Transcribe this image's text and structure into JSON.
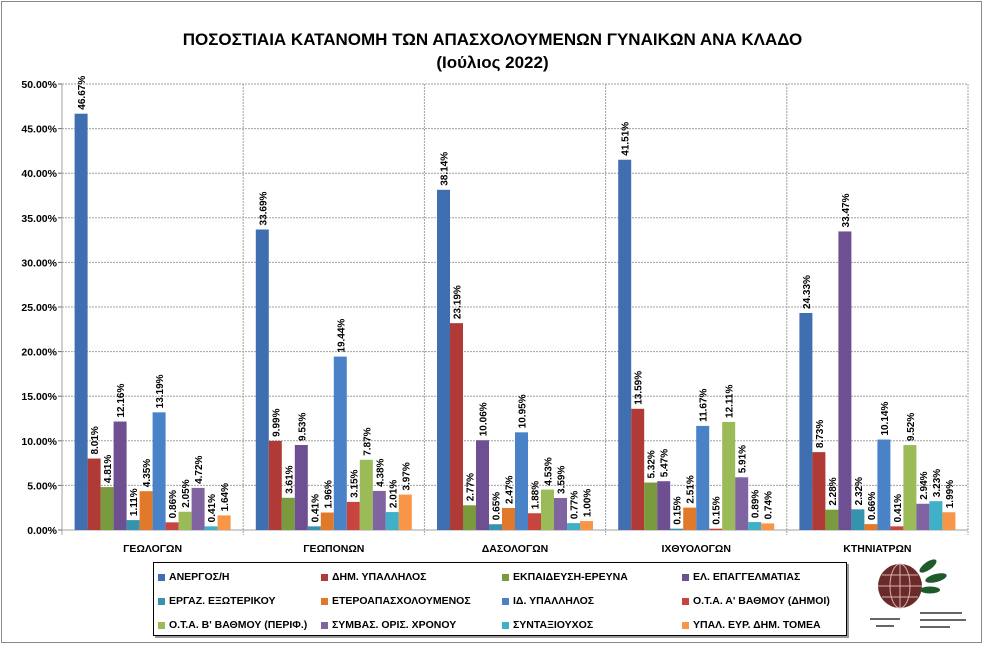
{
  "chart_data": {
    "type": "bar",
    "title": "ΠΟΣΟΣΤΙΑΙΑ ΚΑΤΑΝΟΜΗ ΤΩΝ ΑΠΑΣΧΟΛΟΥΜΕΝΩΝ ΓΥΝΑΙΚΩΝ ΑΝΑ ΚΛΑΔΟ",
    "subtitle": "(Ιούλιος 2022)",
    "categories": [
      "ΓΕΩΛΟΓΩΝ",
      "ΓΕΩΠΟΝΩΝ",
      "ΔΑΣΟΛΟΓΩΝ",
      "ΙΧΘΥΟΛΟΓΩΝ",
      "ΚΤΗΝΙΑΤΡΩΝ"
    ],
    "ylim": [
      0,
      50
    ],
    "yticks": [
      "0.00%",
      "5.00%",
      "10.00%",
      "15.00%",
      "20.00%",
      "25.00%",
      "30.00%",
      "35.00%",
      "40.00%",
      "45.00%",
      "50.00%"
    ],
    "grid": true,
    "legend_position": "bottom",
    "series": [
      {
        "name": "ΑΝΕΡΓΟΣ/Η",
        "color": "#3f6fb0",
        "values": [
          46.67,
          33.69,
          38.14,
          41.51,
          24.33
        ]
      },
      {
        "name": "ΔΗΜ. ΥΠΑΛΛΗΛΟΣ",
        "color": "#b03a36",
        "values": [
          8.01,
          9.99,
          23.19,
          13.59,
          8.73
        ]
      },
      {
        "name": "ΕΚΠΑΙΔΕΥΣΗ-ΕΡΕΥΝΑ",
        "color": "#7a9a3e",
        "values": [
          4.81,
          3.61,
          2.77,
          5.32,
          2.28
        ]
      },
      {
        "name": "ΕΛ. ΕΠΑΓΓΕΛΜΑΤΙΑΣ",
        "color": "#6e4f91",
        "values": [
          12.16,
          9.53,
          10.06,
          5.47,
          33.47
        ]
      },
      {
        "name": "ΕΡΓΑΖ. ΕΞΩΤΕΡΙΚΟΥ",
        "color": "#3793ad",
        "values": [
          1.11,
          0.41,
          0.65,
          0.15,
          2.32
        ]
      },
      {
        "name": "ΕΤΕΡΟΑΠΑΣΧΟΛΟΥΜΕΝΟΣ",
        "color": "#e07a2a",
        "values": [
          4.35,
          1.96,
          2.47,
          2.51,
          0.66
        ]
      },
      {
        "name": "ΙΔ. ΥΠΑΛΛΗΛΟΣ",
        "color": "#4a82c8",
        "values": [
          13.19,
          19.44,
          10.95,
          11.67,
          10.14
        ]
      },
      {
        "name": "Ο.Τ.Α. Α' ΒΑΘΜΟΥ (ΔΗΜΟΙ)",
        "color": "#c8453f",
        "values": [
          0.86,
          3.15,
          1.88,
          0.15,
          0.41
        ]
      },
      {
        "name": "Ο.Τ.Α. Β' ΒΑΘΜΟΥ (ΠΕΡΙΦ.)",
        "color": "#9bbb59",
        "values": [
          2.05,
          7.87,
          4.53,
          12.11,
          9.52
        ]
      },
      {
        "name": "ΣΥΜΒΑΣ. ΟΡΙΣ. ΧΡΟΝΟΥ",
        "color": "#8064a2",
        "values": [
          4.72,
          4.38,
          3.59,
          5.91,
          2.94
        ]
      },
      {
        "name": "ΣΥΝΤΑΞΙΟΥΧΟΣ",
        "color": "#3fb0c8",
        "values": [
          0.41,
          2.01,
          0.77,
          0.89,
          3.23
        ]
      },
      {
        "name": "ΥΠΑΛ. ΕΥΡ. ΔΗΜ. ΤΟΜΕΑ",
        "color": "#f79646",
        "values": [
          1.64,
          3.97,
          1.0,
          0.74,
          1.99
        ]
      }
    ]
  }
}
